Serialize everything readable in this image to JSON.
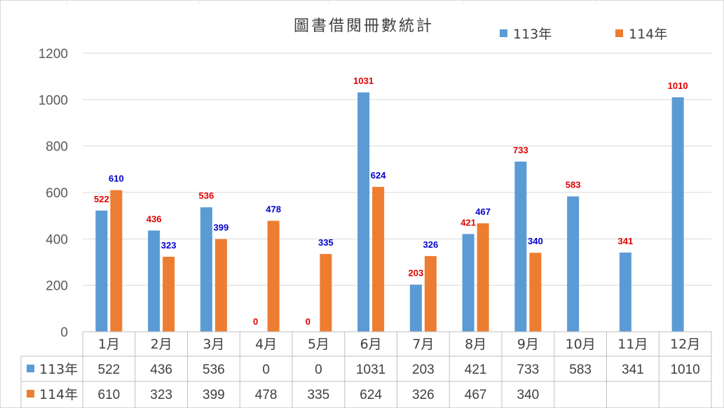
{
  "chart_data": {
    "type": "bar",
    "title": "圖書借閱冊數統計",
    "categories": [
      "1月",
      "2月",
      "3月",
      "4月",
      "5月",
      "6月",
      "7月",
      "8月",
      "9月",
      "10月",
      "11月",
      "12月"
    ],
    "series": [
      {
        "name": "113年",
        "color": "#5B9BD5",
        "label_color": "#E00000",
        "values": [
          522,
          436,
          536,
          0,
          0,
          1031,
          203,
          421,
          733,
          583,
          341,
          1010
        ]
      },
      {
        "name": "114年",
        "color": "#ED7D31",
        "label_color": "#0000CC",
        "values": [
          610,
          323,
          399,
          478,
          335,
          624,
          326,
          467,
          340,
          null,
          null,
          null
        ]
      }
    ],
    "ylim": [
      0,
      1200
    ],
    "yticks": [
      0,
      200,
      400,
      600,
      800,
      1000,
      1200
    ],
    "grid": true,
    "legend": "top-right",
    "data_table": true
  }
}
